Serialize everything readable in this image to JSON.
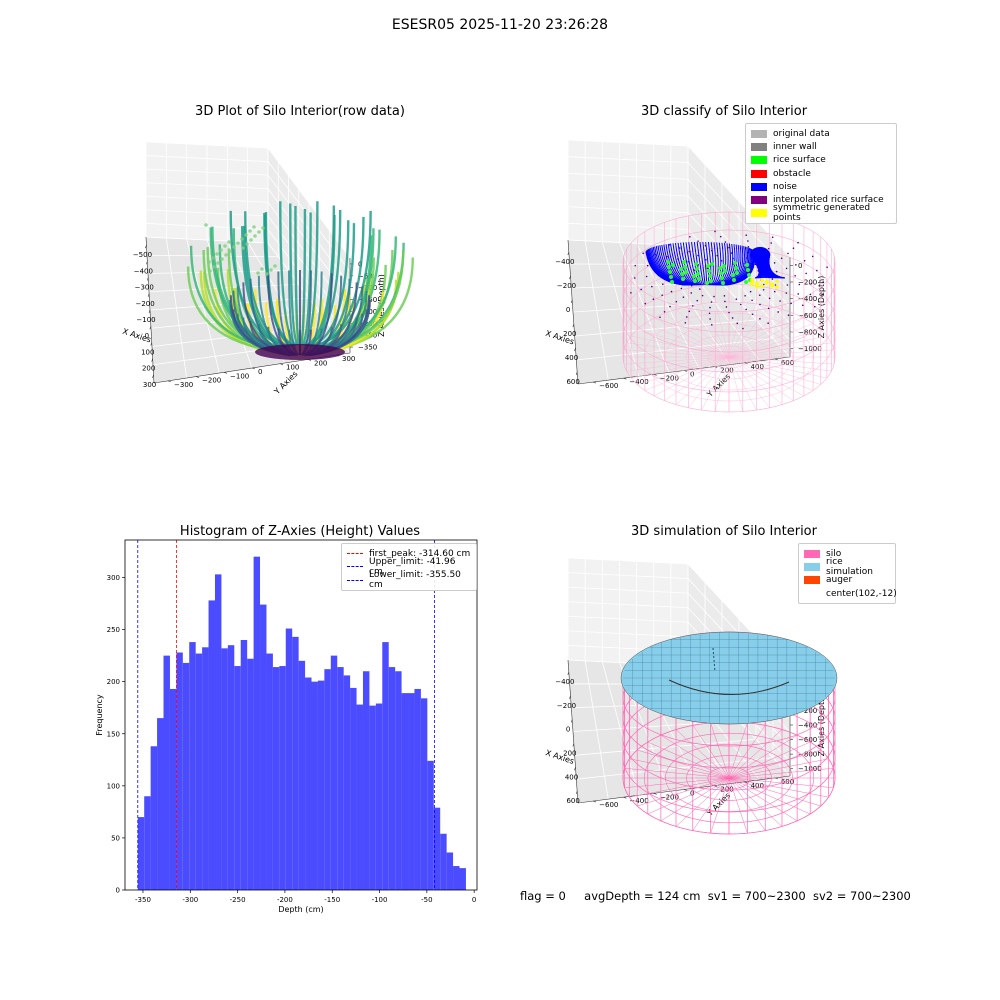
{
  "figure": {
    "suptitle": "ESESR05 2025-11-20 23:26:28",
    "footer": {
      "flag": "flag = 0",
      "avg_depth": "avgDepth = 124 cm",
      "sv1": "sv1 = 700~2300",
      "sv2": "sv2 = 700~2300"
    }
  },
  "chart_data": [
    {
      "type": "scatter3d",
      "title": "3D Plot of Silo Interior(row data)",
      "xlabel": "X Axies",
      "ylabel": "Y Axies",
      "zlabel": "Z Axies (Depth)",
      "x_ticks": [
        "−500",
        "−400",
        "−300",
        "−200",
        "−100",
        "0",
        "100",
        "200",
        "300"
      ],
      "y_ticks": [
        "−300",
        "−200",
        "−100",
        "0",
        "100",
        "200",
        "300"
      ],
      "z_ticks": [
        "0",
        "−50",
        "−100",
        "−150",
        "−200",
        "−250",
        "−300",
        "−350"
      ],
      "xlim": [
        -500,
        300
      ],
      "ylim": [
        -300,
        300
      ],
      "zlim": [
        -370,
        0
      ],
      "colormap": "viridis",
      "grid": true
    },
    {
      "type": "scatter3d",
      "title": "3D classify of Silo Interior",
      "xlabel": "X Axies",
      "ylabel": "Y Axies",
      "zlabel": "Z Axies (Depth)",
      "x_ticks": [
        "−400",
        "−200",
        "0",
        "200",
        "400",
        "600"
      ],
      "y_ticks": [
        "−600",
        "−400",
        "−200",
        "0",
        "200",
        "400",
        "600"
      ],
      "z_ticks": [
        "0",
        "−200",
        "−400",
        "−600",
        "−800",
        "−1000"
      ],
      "xlim": [
        -500,
        700
      ],
      "ylim": [
        -700,
        700
      ],
      "zlim": [
        -1000,
        100
      ],
      "legend": [
        {
          "label": "original data",
          "color": "#b3b3b3"
        },
        {
          "label": "inner wall",
          "color": "#808080"
        },
        {
          "label": "rice surface",
          "color": "#00ff00"
        },
        {
          "label": "obstacle",
          "color": "#ff0000"
        },
        {
          "label": "noise",
          "color": "#0000ff"
        },
        {
          "label": "interpolated rice surface",
          "color": "#800080"
        },
        {
          "label": "symmetric generated points",
          "color": "#ffff00"
        }
      ],
      "legend_position": "top-right",
      "grid": true
    },
    {
      "type": "bar",
      "title": "Histogram of Z-Axies (Height) Values",
      "xlabel": "Depth (cm)",
      "ylabel": "Frequency",
      "x_ticks": [
        -350,
        -300,
        -250,
        -200,
        -150,
        -100,
        -50,
        0
      ],
      "y_ticks": [
        0,
        50,
        100,
        150,
        200,
        250,
        300
      ],
      "xlim": [
        -369,
        3
      ],
      "ylim": [
        0,
        336
      ],
      "bin_start": -355.5,
      "bin_width": 6.8,
      "values": [
        70,
        90,
        138,
        165,
        225,
        193,
        228,
        218,
        238,
        227,
        233,
        278,
        303,
        232,
        235,
        215,
        240,
        222,
        320,
        274,
        227,
        214,
        215,
        251,
        243,
        220,
        204,
        200,
        201,
        212,
        225,
        214,
        206,
        194,
        178,
        210,
        177,
        179,
        238,
        214,
        210,
        189,
        189,
        193,
        184,
        124,
        79,
        54,
        36,
        23,
        21
      ],
      "bar_color": "#4b4bff",
      "vlines": [
        {
          "label": "first_peak: -314.60 cm",
          "x": -314.6,
          "color": "#ff0000"
        },
        {
          "label": "Upper_limit: -41.96 cm",
          "x": -41.96,
          "color": "#0000ff"
        },
        {
          "label": "Lower_limit: -355.50 cm",
          "x": -355.5,
          "color": "#0000ff"
        }
      ],
      "legend_position": "top-right"
    },
    {
      "type": "surface3d",
      "title": "3D simulation of Silo Interior",
      "xlabel": "X Axies",
      "ylabel": "Y Axies",
      "zlabel": "Z Axies (Depth)",
      "x_ticks": [
        "−400",
        "−200",
        "0",
        "200",
        "400",
        "600"
      ],
      "y_ticks": [
        "−600",
        "−400",
        "−200",
        "0",
        "200",
        "400",
        "600"
      ],
      "z_ticks": [
        "200",
        "0",
        "−200",
        "−400",
        "−600",
        "−800",
        "−1000"
      ],
      "xlim": [
        -500,
        700
      ],
      "ylim": [
        -700,
        700
      ],
      "zlim": [
        -1000,
        300
      ],
      "legend": [
        {
          "label": "silo",
          "color": "#ff69b4"
        },
        {
          "label": "rice simulation",
          "color": "#87ceeb"
        },
        {
          "label": "auger",
          "color": "#ff4500"
        },
        {
          "label": "center(102,-12)",
          "color": ""
        }
      ],
      "legend_position": "top-right",
      "grid": true
    }
  ]
}
